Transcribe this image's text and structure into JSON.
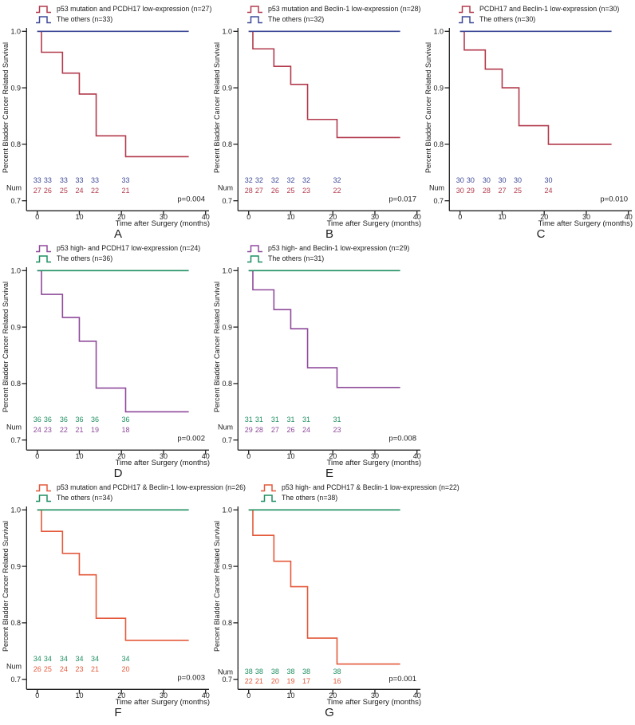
{
  "chart_data": {
    "type": "line",
    "subtype": "kaplan-meier-step-survival",
    "description": "Seven Kaplan-Meier bladder cancer related survival panels labeled A to G",
    "common": {
      "xlabel": "Time after Surgery (months)",
      "ylabel": "Percent Bladder Cancer Related Survival",
      "at_risk_label": "Num",
      "xlim": [
        0,
        40
      ],
      "xticks": [
        0,
        10,
        20,
        30,
        40
      ],
      "ytick_labels": [
        "1.0",
        "0.9",
        "0.8",
        "0.7"
      ],
      "ytick_values": [
        1.0,
        0.9,
        0.8,
        0.7
      ],
      "event_times": [
        1,
        6,
        10,
        14,
        21
      ],
      "curve_start_time": 0,
      "curve_end_time": 36,
      "at_risk_time_positions": [
        0,
        2.5,
        6.3,
        10,
        13.7,
        21
      ],
      "grid": false,
      "legend_position": "top-left",
      "text_color": "#1a1a1a",
      "axis_color": "#222222"
    },
    "panels": [
      {
        "letter": "A",
        "p_value": "p=0.004",
        "risk_series": {
          "name": "p53 mutation and PCDH17 low-expression (n=27)",
          "color": "#b23a4c",
          "start_level": 1.0,
          "levels_after_events": [
            0.963,
            0.926,
            0.889,
            0.815,
            0.778
          ],
          "at_risk": [
            27,
            26,
            25,
            24,
            22,
            21
          ]
        },
        "control_series": {
          "name": "The others (n=33)",
          "color": "#3f4b98",
          "constant_level": 1.0,
          "at_risk": [
            33,
            33,
            33,
            33,
            33,
            33
          ]
        }
      },
      {
        "letter": "B",
        "p_value": "p=0.017",
        "risk_series": {
          "name": "p53 mutation and Beclin-1 low-expression (n=28)",
          "color": "#b23a4c",
          "start_level": 1.0,
          "levels_after_events": [
            0.969,
            0.938,
            0.906,
            0.844,
            0.812
          ],
          "at_risk": [
            28,
            27,
            26,
            25,
            23,
            22
          ]
        },
        "control_series": {
          "name": "The others (n=32)",
          "color": "#3f4b98",
          "constant_level": 1.0,
          "at_risk": [
            32,
            32,
            32,
            32,
            32,
            32
          ]
        }
      },
      {
        "letter": "C",
        "p_value": "p=0.010",
        "risk_series": {
          "name": "PCDH17 and Beclin-1 low-expression (n=30)",
          "color": "#b23a4c",
          "start_level": 1.0,
          "levels_after_events": [
            0.967,
            0.933,
            0.9,
            0.833,
            0.8
          ],
          "at_risk": [
            30,
            29,
            28,
            27,
            25,
            24
          ]
        },
        "control_series": {
          "name": "The others (n=30)",
          "color": "#3f4b98",
          "constant_level": 1.0,
          "at_risk": [
            30,
            30,
            30,
            30,
            30,
            30
          ]
        }
      },
      {
        "letter": "D",
        "p_value": "p=0.002",
        "risk_series": {
          "name": "p53 high- and PCDH17 low-expression (n=24)",
          "color": "#8f4a9b",
          "start_level": 1.0,
          "levels_after_events": [
            0.958,
            0.917,
            0.875,
            0.792,
            0.75
          ],
          "at_risk": [
            24,
            23,
            22,
            21,
            19,
            18
          ]
        },
        "control_series": {
          "name": "The others (n=36)",
          "color": "#1f8f62",
          "constant_level": 1.0,
          "at_risk": [
            36,
            36,
            36,
            36,
            36,
            36
          ]
        }
      },
      {
        "letter": "E",
        "p_value": "p=0.008",
        "risk_series": {
          "name": "p53 high- and Beclin-1 low-expression (n=29)",
          "color": "#8f4a9b",
          "start_level": 1.0,
          "levels_after_events": [
            0.966,
            0.931,
            0.897,
            0.828,
            0.793
          ],
          "at_risk": [
            29,
            28,
            27,
            26,
            24,
            23
          ]
        },
        "control_series": {
          "name": "The others (n=31)",
          "color": "#1f8f62",
          "constant_level": 1.0,
          "at_risk": [
            31,
            31,
            31,
            31,
            31,
            31
          ]
        }
      },
      {
        "letter": "F",
        "p_value": "p=0.003",
        "risk_series": {
          "name": "p53 mutation and PCDH17 & Beclin-1 low-expression (n=26)",
          "color": "#e4593b",
          "start_level": 1.0,
          "levels_after_events": [
            0.962,
            0.923,
            0.885,
            0.808,
            0.769
          ],
          "at_risk": [
            26,
            25,
            24,
            23,
            21,
            20
          ]
        },
        "control_series": {
          "name": "The others (n=34)",
          "color": "#1f8f62",
          "constant_level": 1.0,
          "at_risk": [
            34,
            34,
            34,
            34,
            34,
            34
          ]
        }
      },
      {
        "letter": "G",
        "p_value": "p=0.001",
        "risk_series": {
          "name": "p53 high- and PCDH17 & Beclin-1 low-expression (n=22)",
          "color": "#e4593b",
          "start_level": 1.0,
          "levels_after_events": [
            0.955,
            0.909,
            0.864,
            0.773,
            0.727
          ],
          "at_risk": [
            22,
            21,
            20,
            19,
            17,
            16
          ]
        },
        "control_series": {
          "name": "The others (n=38)",
          "color": "#1f8f62",
          "constant_level": 1.0,
          "at_risk": [
            38,
            38,
            38,
            38,
            38,
            38
          ]
        }
      }
    ]
  }
}
